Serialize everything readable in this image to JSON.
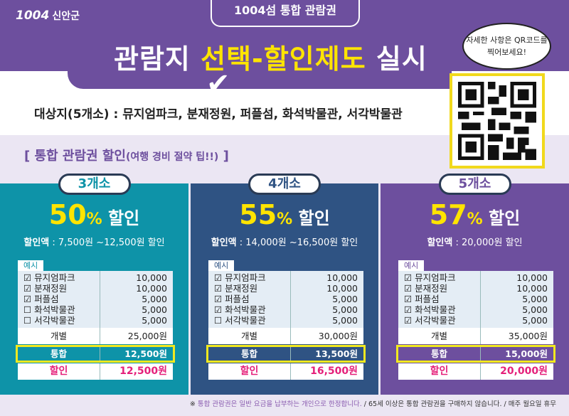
{
  "header": {
    "logo_num": "1004",
    "logo_text": "신안군",
    "tab": "1004섬 통합 관람권",
    "title_a": "관람지 ",
    "title_b": "선택",
    "title_c": "할인제도",
    "title_d": " 실시",
    "bubble": "자세한 사항은 QR코드를 찍어보세요!"
  },
  "targets": "대상지(5개소) : 뮤지엄파크, 분재정원, 퍼플섬, 화석박물관, 서각박물관",
  "section": {
    "main": "[ 통합 관람권 할인",
    "sub": "(여행 경비 절약 팁!!)",
    "end": " ]"
  },
  "colors": {
    "teal": "#0e93a8",
    "navy": "#2f5383",
    "purple": "#6d4f9e",
    "yellow": "#ffe400"
  },
  "columns": [
    {
      "label": "3개소",
      "pct": "50",
      "pct_unit": "%",
      "pct_text": " 할인",
      "amount_label": "할인액",
      "amount": " : 7,500원 ~12,500원 할인",
      "example": "예시",
      "items": [
        "☑ 뮤지엄파크",
        "☑ 분재정원",
        "☑ 퍼플섬",
        "☐ 화석박물관",
        "☐ 서각박물관"
      ],
      "prices": [
        "10,000",
        "10,000",
        "5,000",
        "5,000",
        "5,000"
      ],
      "individual_label": "개별",
      "individual": "25,000원",
      "combined_label": "통합",
      "combined": "12,500원",
      "discount_label": "할인",
      "discount": "12,500원"
    },
    {
      "label": "4개소",
      "pct": "55",
      "pct_unit": "%",
      "pct_text": " 할인",
      "amount_label": "할인액",
      "amount": " : 14,000원 ~16,500원 할인",
      "example": "예시",
      "items": [
        "☑ 뮤지엄파크",
        "☑ 분재정원",
        "☑ 퍼플섬",
        "☑ 화석박물관",
        "☐ 서각박물관"
      ],
      "prices": [
        "10,000",
        "10,000",
        "5,000",
        "5,000",
        "5,000"
      ],
      "individual_label": "개별",
      "individual": "30,000원",
      "combined_label": "통합",
      "combined": "13,500원",
      "discount_label": "할인",
      "discount": "16,500원"
    },
    {
      "label": "5개소",
      "pct": "57",
      "pct_unit": "%",
      "pct_text": " 할인",
      "amount_label": "할인액",
      "amount": " : 20,000원 할인",
      "example": "예시",
      "items": [
        "☑ 뮤지엄파크",
        "☑ 분재정원",
        "☑ 퍼플섬",
        "☑ 화석박물관",
        "☑ 서각박물관"
      ],
      "prices": [
        "10,000",
        "10,000",
        "5,000",
        "5,000",
        "5,000"
      ],
      "individual_label": "개별",
      "individual": "35,000원",
      "combined_label": "통합",
      "combined": "15,000원",
      "discount_label": "할인",
      "discount": "20,000원"
    }
  ],
  "footer": {
    "mark": "※ ",
    "a": "통합 관람권은 일반 요금을 납부하는 개인으로 한정합니다.",
    "b": " / 65세 이상은 통합 관람권을 구매하지 않습니다. / 매주 월요일 휴무"
  }
}
